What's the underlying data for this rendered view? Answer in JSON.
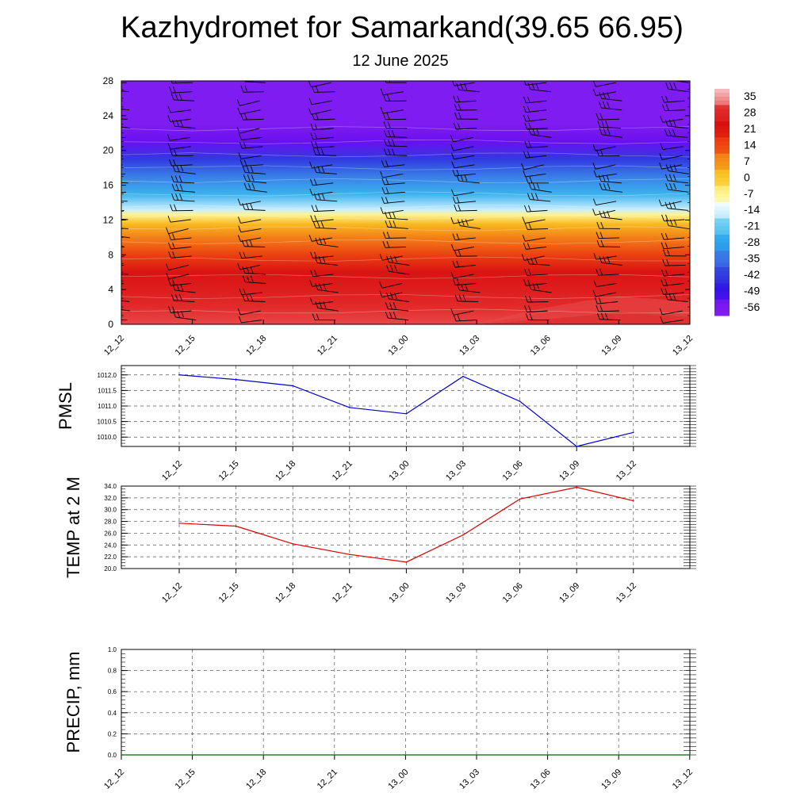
{
  "title": "Kazhydromet for Samarkand(39.65 66.95)",
  "subtitle": "12 June 2025",
  "chart_data": [
    {
      "type": "heatmap",
      "title": "",
      "x": [
        "12_12",
        "12_15",
        "12_18",
        "12_21",
        "13_00",
        "13_03",
        "13_06",
        "13_09",
        "13_12"
      ],
      "y_ticks": [
        0,
        4,
        8,
        12,
        16,
        20,
        24,
        28
      ],
      "ylim": [
        0,
        28
      ],
      "temperature_bands": [
        {
          "y": 0,
          "value": 31
        },
        {
          "y": 2,
          "value": 28
        },
        {
          "y": 4,
          "value": 26
        },
        {
          "y": 6,
          "value": 23
        },
        {
          "y": 8,
          "value": 15
        },
        {
          "y": 10,
          "value": 8
        },
        {
          "y": 11.5,
          "value": 2
        },
        {
          "y": 12.6,
          "value": -7
        },
        {
          "y": 13.2,
          "value": -16
        },
        {
          "y": 15,
          "value": -26
        },
        {
          "y": 17,
          "value": -34
        },
        {
          "y": 19,
          "value": -44
        },
        {
          "y": 21,
          "value": -54
        },
        {
          "y": 23,
          "value": -58
        },
        {
          "y": 28,
          "value": -58
        }
      ],
      "colorbar_labels": [
        "35",
        "28",
        "21",
        "14",
        "7",
        "0",
        "-7",
        "-14",
        "-21",
        "-28",
        "-35",
        "-42",
        "-49",
        "-56"
      ],
      "colorbar_colors": [
        "#f4b8b8",
        "#e03030",
        "#d81010",
        "#ee3a10",
        "#f48a18",
        "#f8c020",
        "#fff080",
        "#d8f4fc",
        "#60c8f0",
        "#28a0ea",
        "#3c6ee4",
        "#3030e0",
        "#3a10f0",
        "#8020f0"
      ],
      "wind_barbs": "present",
      "grid": false
    },
    {
      "type": "line",
      "ylabel": "PMSL",
      "x": [
        "12_12",
        "12_15",
        "12_18",
        "12_21",
        "13_00",
        "13_03",
        "13_06",
        "13_09",
        "13_12"
      ],
      "y_ticks": [
        "1010.0",
        "1010.5",
        "1011.0",
        "1011.5",
        "1012.0"
      ],
      "ylim": [
        1009.7,
        1012.3
      ],
      "series": [
        {
          "values": [
            1012.0,
            1011.85,
            1011.65,
            1010.95,
            1010.75,
            1011.95,
            1011.15,
            1009.7,
            1010.15
          ],
          "color": "#0000cc"
        }
      ],
      "grid": true
    },
    {
      "type": "line",
      "ylabel": "TEMP at 2 M",
      "x": [
        "12_12",
        "12_15",
        "12_18",
        "12_21",
        "13_00",
        "13_03",
        "13_06",
        "13_09",
        "13_12"
      ],
      "y_ticks": [
        "20.0",
        "22.0",
        "24.0",
        "26.0",
        "28.0",
        "30.0",
        "32.0",
        "34.0"
      ],
      "ylim": [
        20,
        34
      ],
      "series": [
        {
          "values": [
            27.7,
            27.2,
            24.2,
            22.4,
            21.1,
            25.7,
            31.8,
            33.8,
            31.5
          ],
          "color": "#dd0000"
        }
      ],
      "grid": true
    },
    {
      "type": "line",
      "ylabel": "PRECIP, mm",
      "x": [
        "12_12",
        "12_15",
        "12_18",
        "12_21",
        "13_00",
        "13_03",
        "13_06",
        "13_09",
        "13_12"
      ],
      "y_ticks": [
        "0.0",
        "0.2",
        "0.4",
        "0.6",
        "0.8",
        "1.0"
      ],
      "ylim": [
        0,
        1
      ],
      "series": [
        {
          "values": [
            0,
            0,
            0,
            0,
            0,
            0,
            0,
            0,
            0
          ],
          "color": "#006400"
        }
      ],
      "grid": true
    }
  ]
}
